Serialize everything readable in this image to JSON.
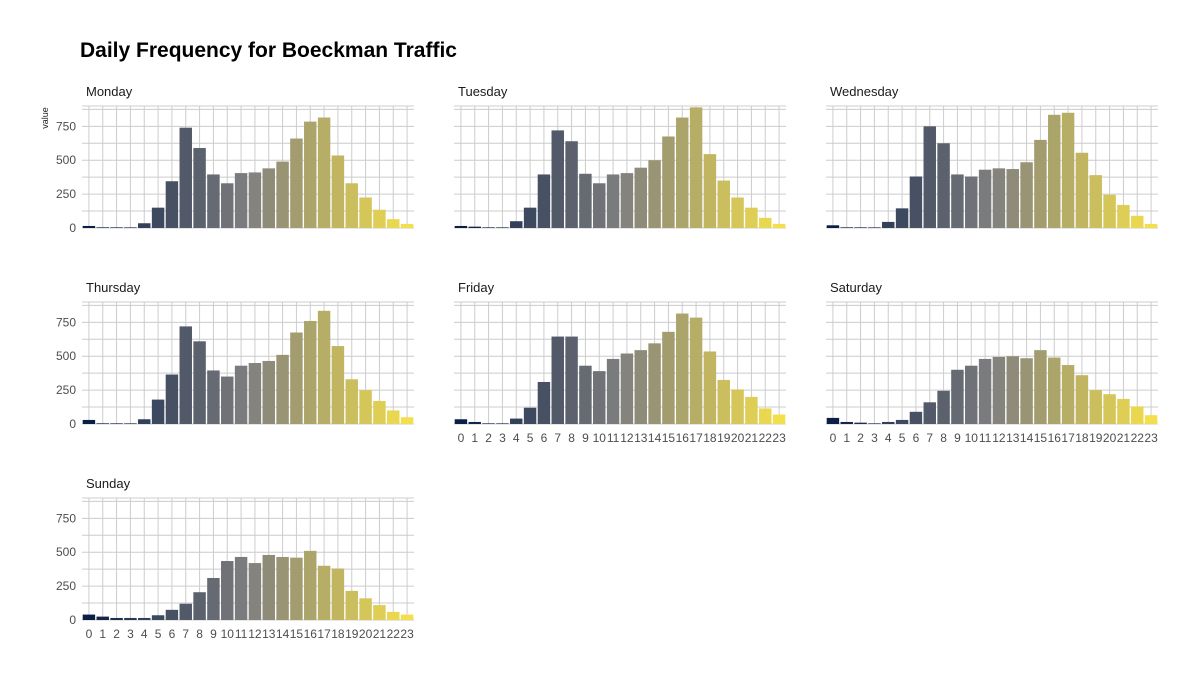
{
  "chart_data": {
    "type": "bar",
    "title": "Daily Frequency for Boeckman Traffic",
    "ylabel": "value",
    "xlabel": "",
    "ylim": [
      0,
      900
    ],
    "yticks": [
      0,
      250,
      500,
      750
    ],
    "categories": [
      "0",
      "1",
      "2",
      "3",
      "4",
      "5",
      "6",
      "7",
      "8",
      "9",
      "10",
      "11",
      "12",
      "13",
      "14",
      "15",
      "16",
      "17",
      "18",
      "19",
      "20",
      "21",
      "22",
      "23"
    ],
    "color_low": "#0b1f44",
    "color_mid": "#7f7f7f",
    "color_high": "#f3df4c",
    "panels": [
      {
        "name": "Monday",
        "values": [
          15,
          5,
          5,
          5,
          35,
          150,
          345,
          740,
          590,
          395,
          330,
          405,
          410,
          440,
          490,
          660,
          785,
          815,
          535,
          330,
          225,
          135,
          65,
          30
        ]
      },
      {
        "name": "Tuesday",
        "values": [
          15,
          10,
          5,
          5,
          50,
          150,
          395,
          720,
          640,
          400,
          330,
          395,
          405,
          445,
          500,
          675,
          815,
          890,
          545,
          350,
          225,
          150,
          75,
          30
        ]
      },
      {
        "name": "Wednesday",
        "values": [
          20,
          5,
          5,
          5,
          45,
          145,
          380,
          750,
          625,
          395,
          380,
          430,
          440,
          435,
          485,
          650,
          835,
          850,
          555,
          390,
          245,
          170,
          90,
          30
        ]
      },
      {
        "name": "Thursday",
        "values": [
          30,
          5,
          5,
          5,
          35,
          180,
          365,
          720,
          610,
          395,
          350,
          430,
          450,
          465,
          510,
          675,
          760,
          835,
          575,
          330,
          250,
          170,
          100,
          50
        ]
      },
      {
        "name": "Friday",
        "values": [
          35,
          15,
          5,
          5,
          40,
          120,
          310,
          645,
          645,
          430,
          390,
          480,
          520,
          545,
          595,
          680,
          815,
          785,
          535,
          325,
          255,
          200,
          115,
          70
        ]
      },
      {
        "name": "Saturday",
        "values": [
          45,
          15,
          10,
          5,
          15,
          30,
          90,
          160,
          245,
          400,
          430,
          480,
          495,
          500,
          485,
          545,
          490,
          435,
          360,
          250,
          220,
          185,
          130,
          65
        ]
      },
      {
        "name": "Sunday",
        "values": [
          40,
          25,
          15,
          15,
          15,
          35,
          75,
          120,
          205,
          310,
          435,
          465,
          420,
          480,
          465,
          460,
          510,
          400,
          380,
          215,
          160,
          110,
          60,
          40
        ]
      }
    ]
  }
}
